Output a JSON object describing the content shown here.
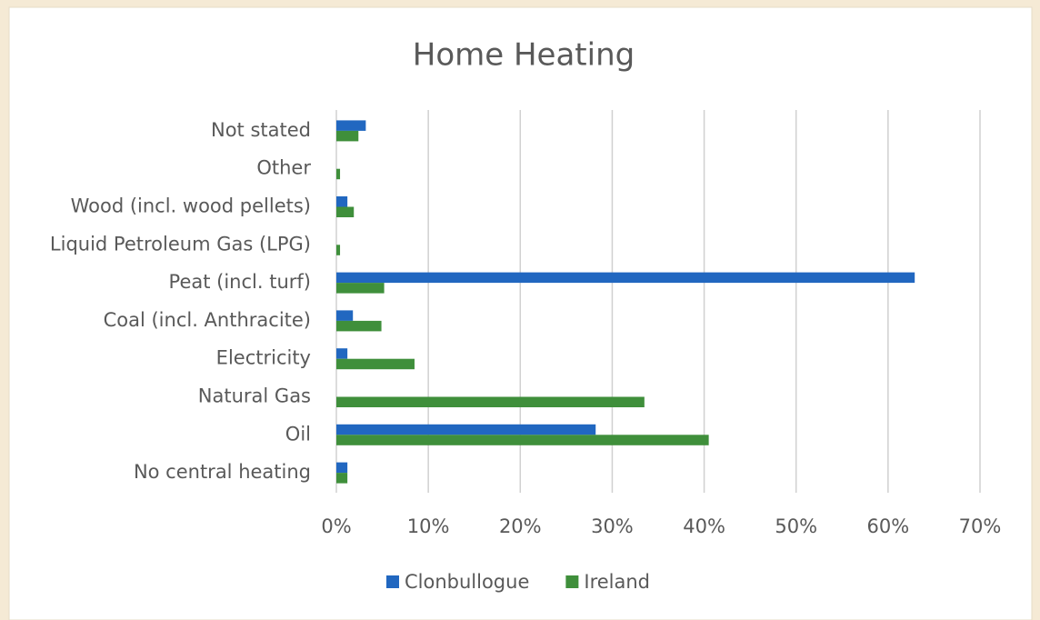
{
  "chart_data": {
    "type": "hbar",
    "title": "Home Heating",
    "categories": [
      "No central heating",
      "Oil",
      "Natural Gas",
      "Electricity",
      "Coal (incl. Anthracite)",
      "Peat (incl. turf)",
      "Liquid Petroleum Gas (LPG)",
      "Wood (incl. wood pellets)",
      "Other",
      "Not stated"
    ],
    "series": [
      {
        "name": "Clonbullogue",
        "color": "#2167c0",
        "values": [
          1.2,
          28.2,
          0,
          1.2,
          1.8,
          62.9,
          0,
          1.2,
          0,
          3.2
        ]
      },
      {
        "name": "Ireland",
        "color": "#3f8f3b",
        "values": [
          1.2,
          40.5,
          33.5,
          8.5,
          4.9,
          5.2,
          0.4,
          1.9,
          0.4,
          2.4
        ]
      }
    ],
    "xlim": [
      0,
      70
    ],
    "xticks": [
      {
        "value": 0,
        "label": "0%"
      },
      {
        "value": 10,
        "label": "10%"
      },
      {
        "value": 20,
        "label": "20%"
      },
      {
        "value": 30,
        "label": "30%"
      },
      {
        "value": 40,
        "label": "40%"
      },
      {
        "value": 50,
        "label": "50%"
      },
      {
        "value": 60,
        "label": "60%"
      },
      {
        "value": 70,
        "label": "70%"
      }
    ],
    "grid": true,
    "legend": "bottom"
  }
}
